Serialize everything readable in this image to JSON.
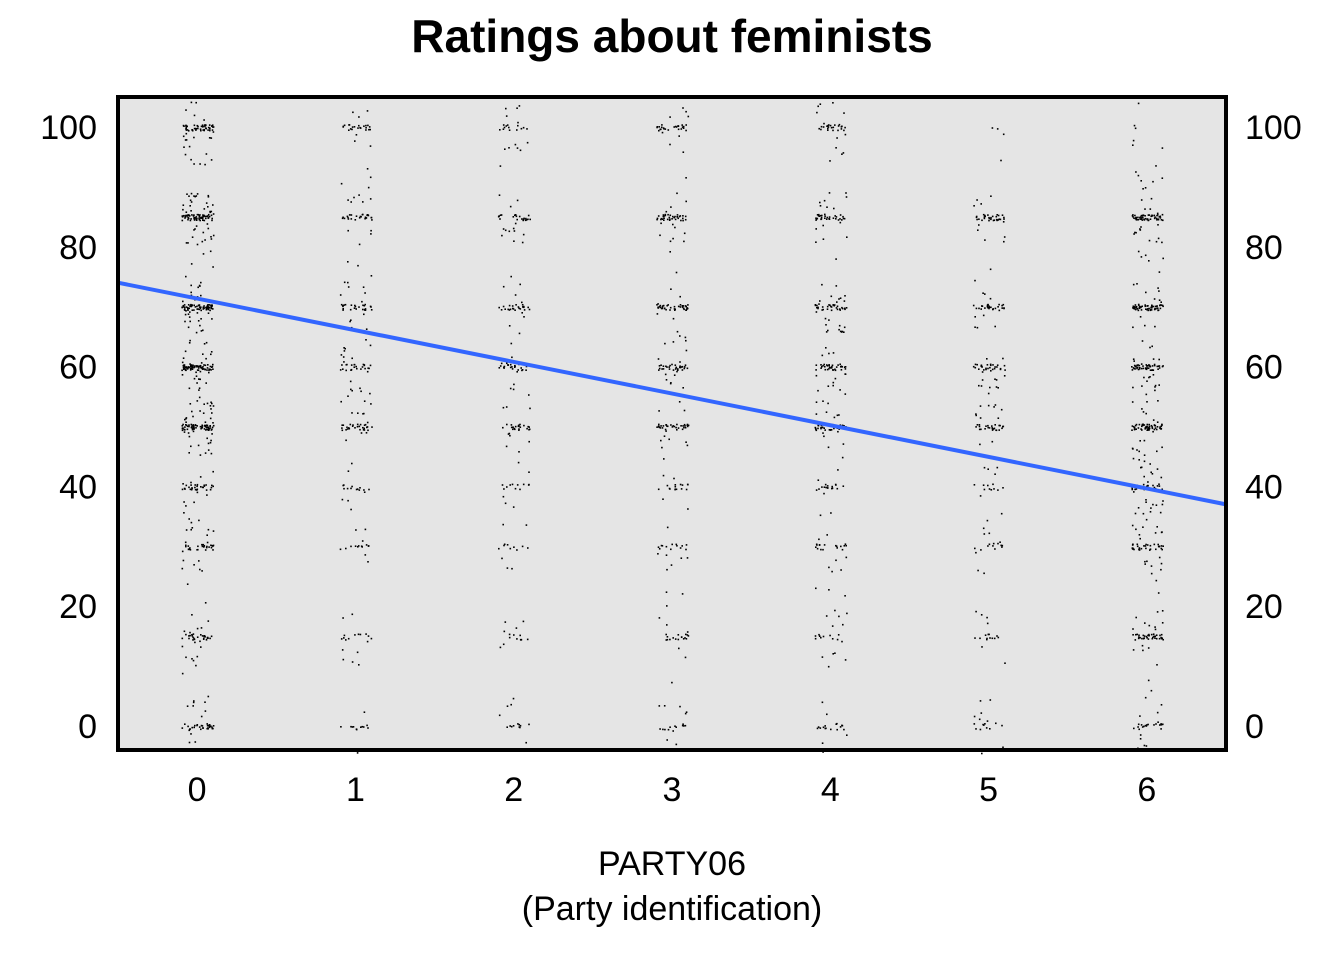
{
  "chart_data": {
    "type": "scatter",
    "title": "Ratings about feminists",
    "xlabel": "PARTY06",
    "xlabel_sub": "(Party identification)",
    "ylabel": "",
    "x_ticks": [
      "0",
      "1",
      "2",
      "3",
      "4",
      "5",
      "6"
    ],
    "y_ticks": [
      "0",
      "20",
      "40",
      "60",
      "80",
      "100"
    ],
    "xlim": [
      -0.5,
      6.5
    ],
    "ylim": [
      -4,
      105
    ],
    "y_axis_right": true,
    "grid": false,
    "background_color": "#e5e5e5",
    "point_color": "#000000",
    "jittered_points": true,
    "point_levels": [
      0,
      15,
      30,
      40,
      50,
      60,
      70,
      85,
      100
    ],
    "fit_line": {
      "type": "linear",
      "color": "#3366ff",
      "points": [
        {
          "x": -0.5,
          "y": 74
        },
        {
          "x": 6.5,
          "y": 37
        }
      ]
    }
  }
}
